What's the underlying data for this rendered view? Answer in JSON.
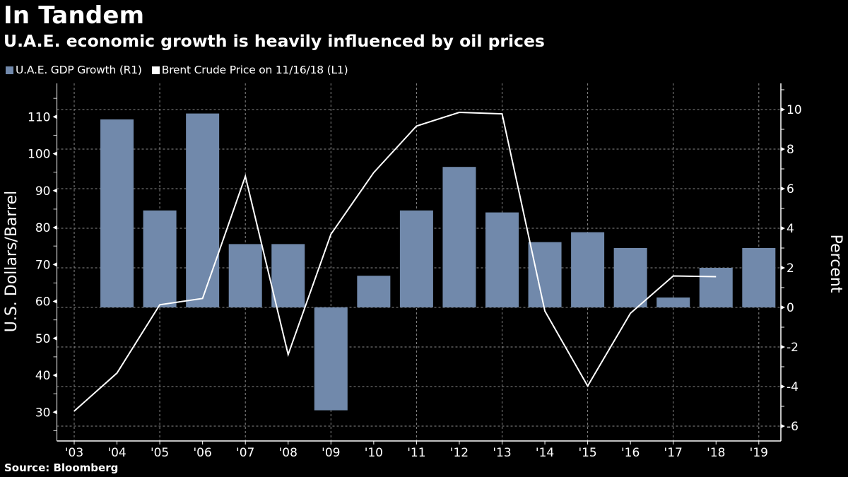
{
  "title": "In Tandem",
  "subtitle": "U.A.E. economic growth is heavily influenced by oil prices",
  "source": "Source: Bloomberg",
  "colors": {
    "background": "#000000",
    "gdp_bar": "#7189ab",
    "price_line": "#ffffff",
    "grid": "#8a8a8a",
    "axis": "#ffffff"
  },
  "legend": [
    {
      "label": "U.A.E. GDP Growth (R1)",
      "color": "#7189ab"
    },
    {
      "label": "Brent Crude Price on 11/16/18 (L1)",
      "color": "#ffffff"
    }
  ],
  "chart_data": {
    "type": "bar",
    "title": "In Tandem",
    "subtitle": "U.A.E. economic growth is heavily influenced by oil prices",
    "categories": [
      "'03",
      "'04",
      "'05",
      "'06",
      "'07",
      "'08",
      "'09",
      "'10",
      "'11",
      "'12",
      "'13",
      "'14",
      "'15",
      "'16",
      "'17",
      "'18",
      "'19"
    ],
    "series": [
      {
        "name": "U.A.E. GDP Growth (R1)",
        "type": "bar",
        "axis": "right",
        "values": [
          null,
          9.5,
          4.9,
          9.8,
          3.2,
          3.2,
          -5.2,
          1.6,
          4.9,
          7.1,
          4.8,
          3.3,
          3.8,
          3.0,
          0.5,
          2.0,
          3.0
        ]
      },
      {
        "name": "Brent Crude Price on 11/16/18 (L1)",
        "type": "line",
        "axis": "left",
        "values": [
          30.3,
          40.6,
          59.1,
          60.8,
          93.9,
          45.6,
          78.2,
          94.9,
          107.5,
          111.2,
          110.8,
          57.4,
          37.1,
          56.8,
          66.9,
          66.7,
          null
        ]
      }
    ],
    "left_axis": {
      "label": "U.S. Dollars/Barrel",
      "ticks": [
        30,
        40,
        50,
        60,
        70,
        80,
        90,
        100,
        110
      ],
      "range": [
        22,
        119
      ]
    },
    "right_axis": {
      "label": "Percent",
      "ticks": [
        -6,
        -4,
        -2,
        0,
        2,
        4,
        6,
        8,
        10
      ],
      "range": [
        -6.7,
        11.3
      ]
    },
    "xlabel": "",
    "grid": true,
    "legend_position": "top-left"
  }
}
